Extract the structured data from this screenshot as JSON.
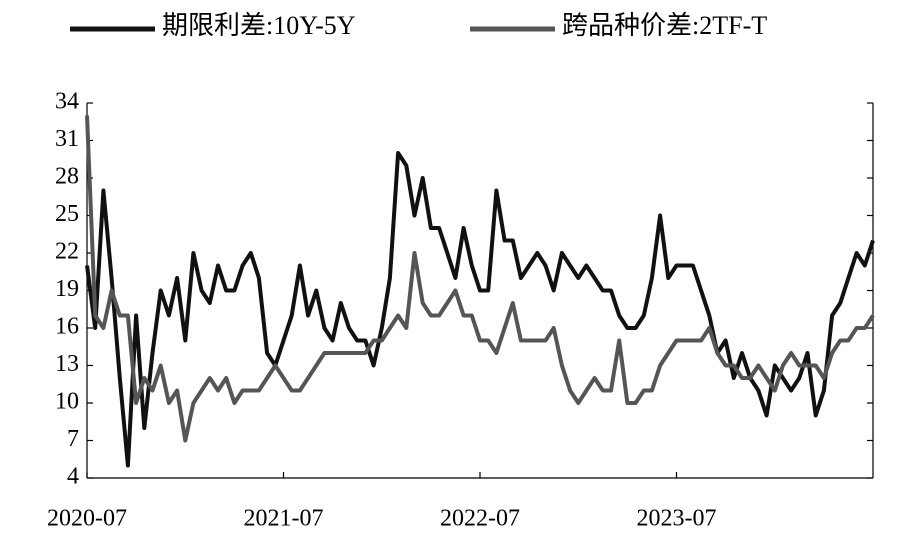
{
  "chart_data": {
    "type": "line",
    "categories": [
      "2020-07",
      null,
      null,
      null,
      null,
      null,
      null,
      null,
      null,
      null,
      null,
      null,
      null,
      null,
      null,
      null,
      null,
      null,
      null,
      null,
      null,
      null,
      null,
      null,
      "2021-07",
      null,
      null,
      null,
      null,
      null,
      null,
      null,
      null,
      null,
      null,
      null,
      null,
      null,
      null,
      null,
      null,
      null,
      null,
      null,
      null,
      null,
      null,
      null,
      "2022-07",
      null,
      null,
      null,
      null,
      null,
      null,
      null,
      null,
      null,
      null,
      null,
      null,
      null,
      null,
      null,
      null,
      null,
      null,
      null,
      null,
      null,
      null,
      null,
      "2023-07",
      null,
      null,
      null,
      null,
      null,
      null,
      null,
      null,
      null,
      null,
      null,
      null,
      null,
      null,
      null,
      null,
      null,
      null,
      null,
      null,
      null,
      null,
      null,
      null
    ],
    "series": [
      {
        "name": "期限利差:10Y-5Y",
        "color": "#111111",
        "values": [
          21,
          16,
          27,
          20,
          12,
          5,
          17,
          8,
          14,
          19,
          17,
          20,
          15,
          22,
          19,
          18,
          21,
          19,
          19,
          21,
          22,
          20,
          14,
          13,
          15,
          17,
          21,
          17,
          19,
          16,
          15,
          18,
          16,
          15,
          15,
          13,
          16,
          20,
          30,
          29,
          25,
          28,
          24,
          24,
          22,
          20,
          24,
          21,
          19,
          19,
          27,
          23,
          23,
          20,
          21,
          22,
          21,
          19,
          22,
          21,
          20,
          21,
          20,
          19,
          19,
          17,
          16,
          16,
          17,
          20,
          25,
          20,
          21,
          21,
          21,
          19,
          17,
          14,
          15,
          12,
          14,
          12,
          11,
          9,
          13,
          12,
          11,
          12,
          14,
          9,
          11,
          17,
          18,
          20,
          22,
          21,
          23
        ]
      },
      {
        "name": "跨品种价差:2TF-T",
        "color": "#555555",
        "values": [
          33,
          17,
          16,
          19,
          17,
          17,
          10,
          12,
          11,
          13,
          10,
          11,
          7,
          10,
          11,
          12,
          11,
          12,
          10,
          11,
          11,
          11,
          12,
          13,
          12,
          11,
          11,
          12,
          13,
          14,
          14,
          14,
          14,
          14,
          14,
          15,
          15,
          16,
          17,
          16,
          22,
          18,
          17,
          17,
          18,
          19,
          17,
          17,
          15,
          15,
          14,
          16,
          18,
          15,
          15,
          15,
          15,
          16,
          13,
          11,
          10,
          11,
          12,
          11,
          11,
          15,
          10,
          10,
          11,
          11,
          13,
          14,
          15,
          15,
          15,
          15,
          16,
          14,
          13,
          13,
          12,
          12,
          13,
          12,
          11,
          13,
          14,
          13,
          13,
          13,
          12,
          14,
          15,
          15,
          16,
          16,
          17
        ]
      }
    ],
    "ylim": [
      4,
      34
    ],
    "yticks": [
      4,
      7,
      10,
      13,
      16,
      19,
      22,
      25,
      28,
      31,
      34
    ],
    "grid": false
  }
}
